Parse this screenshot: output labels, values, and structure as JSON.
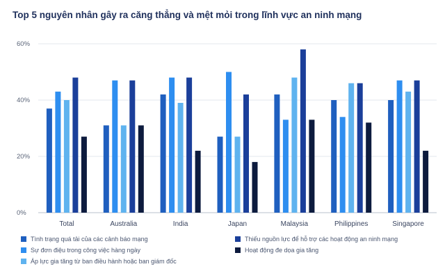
{
  "title": "Top 5 nguyên nhân gây ra căng thẳng và mệt mỏi trong lĩnh vực an ninh mạng",
  "chart_data": {
    "type": "bar",
    "title": "Top 5 nguyên nhân gây ra căng thẳng và mệt mỏi trong lĩnh vực an ninh mạng",
    "xlabel": "",
    "ylabel": "",
    "ylim": [
      0,
      60
    ],
    "yticks": [
      "0%",
      "20%",
      "40%",
      "60%"
    ],
    "grid": true,
    "legend_position": "bottom",
    "categories": [
      "Total",
      "Australia",
      "India",
      "Japan",
      "Malaysia",
      "Philippines",
      "Singapore"
    ],
    "series": [
      {
        "name": "Tình trạng quá tải của các cảnh báo mạng",
        "color": "#1f5fbf",
        "values": [
          37,
          31,
          42,
          27,
          42,
          40,
          40
        ]
      },
      {
        "name": "Sự đơn điệu trong công việc hàng ngày",
        "color": "#2e8ef0",
        "values": [
          43,
          47,
          48,
          50,
          33,
          34,
          47
        ]
      },
      {
        "name": "Áp lực gia tăng từ ban điều hành hoặc ban giám đốc",
        "color": "#5fb3ef",
        "values": [
          40,
          31,
          39,
          27,
          48,
          46,
          43
        ]
      },
      {
        "name": "Thiếu nguồn lực để hỗ trợ các hoạt động an ninh mạng",
        "color": "#1b3f9a",
        "values": [
          48,
          47,
          48,
          42,
          58,
          46,
          47
        ]
      },
      {
        "name": "Hoạt động đe dọa gia tăng",
        "color": "#0d1b3e",
        "values": [
          27,
          31,
          22,
          18,
          33,
          32,
          22
        ]
      }
    ]
  }
}
